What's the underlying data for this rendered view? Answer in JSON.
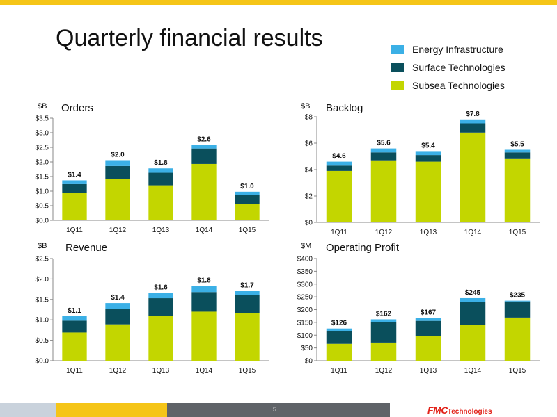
{
  "page": {
    "title": "Quarterly financial results",
    "page_number": "5",
    "logo_text": {
      "brand": "FMC",
      "suffix": "Technologies"
    }
  },
  "legend": {
    "items": [
      {
        "label": "Energy Infrastructure",
        "color": "#3bb0e6"
      },
      {
        "label": "Surface Technologies",
        "color": "#0a4f5c"
      },
      {
        "label": "Subsea Technologies",
        "color": "#c3d600"
      }
    ]
  },
  "chart_data": [
    {
      "type": "bar",
      "stacked": true,
      "title": "Orders",
      "unit": "$B",
      "categories": [
        "1Q11",
        "1Q12",
        "1Q13",
        "1Q14",
        "1Q15"
      ],
      "series": [
        {
          "name": "Subsea Technologies",
          "color": "#c3d600",
          "values": [
            0.94,
            1.42,
            1.2,
            1.93,
            0.56
          ]
        },
        {
          "name": "Surface Technologies",
          "color": "#0a4f5c",
          "values": [
            0.3,
            0.44,
            0.43,
            0.53,
            0.32
          ]
        },
        {
          "name": "Energy Infrastructure",
          "color": "#3bb0e6",
          "values": [
            0.13,
            0.2,
            0.15,
            0.12,
            0.1
          ]
        }
      ],
      "totals": [
        "$1.4",
        "$2.0",
        "$1.8",
        "$2.6",
        "$1.0"
      ],
      "ylim": [
        0,
        3.5
      ],
      "yticks": [
        0,
        0.5,
        1.0,
        1.5,
        2.0,
        2.5,
        3.0,
        3.5
      ],
      "ytick_labels": [
        "$0.0",
        "$0.5",
        "$1.0",
        "$1.5",
        "$2.0",
        "$2.5",
        "$3.0",
        "$3.5"
      ],
      "grid": false
    },
    {
      "type": "bar",
      "stacked": true,
      "title": "Backlog",
      "unit": "$B",
      "categories": [
        "1Q11",
        "1Q12",
        "1Q13",
        "1Q14",
        "1Q15"
      ],
      "series": [
        {
          "name": "Subsea Technologies",
          "color": "#c3d600",
          "values": [
            3.9,
            4.7,
            4.6,
            6.8,
            4.8
          ]
        },
        {
          "name": "Surface Technologies",
          "color": "#0a4f5c",
          "values": [
            0.4,
            0.6,
            0.5,
            0.7,
            0.5
          ]
        },
        {
          "name": "Energy Infrastructure",
          "color": "#3bb0e6",
          "values": [
            0.3,
            0.3,
            0.3,
            0.3,
            0.2
          ]
        }
      ],
      "totals": [
        "$4.6",
        "$5.6",
        "$5.4",
        "$7.8",
        "$5.5"
      ],
      "ylim": [
        0,
        8
      ],
      "yticks": [
        0,
        2,
        4,
        6,
        8
      ],
      "ytick_labels": [
        "$0",
        "$2",
        "$4",
        "$6",
        "$8"
      ],
      "grid": false
    },
    {
      "type": "bar",
      "stacked": true,
      "title": "Revenue",
      "unit": "$B",
      "categories": [
        "1Q11",
        "1Q12",
        "1Q13",
        "1Q14",
        "1Q15"
      ],
      "series": [
        {
          "name": "Subsea Technologies",
          "color": "#c3d600",
          "values": [
            0.69,
            0.89,
            1.09,
            1.2,
            1.16
          ]
        },
        {
          "name": "Surface Technologies",
          "color": "#0a4f5c",
          "values": [
            0.29,
            0.38,
            0.44,
            0.48,
            0.45
          ]
        },
        {
          "name": "Energy Infrastructure",
          "color": "#3bb0e6",
          "values": [
            0.11,
            0.14,
            0.13,
            0.15,
            0.1
          ]
        }
      ],
      "totals": [
        "$1.1",
        "$1.4",
        "$1.6",
        "$1.8",
        "$1.7"
      ],
      "ylim": [
        0,
        2.5
      ],
      "yticks": [
        0,
        0.5,
        1.0,
        1.5,
        2.0,
        2.5
      ],
      "ytick_labels": [
        "$0.0",
        "$0.5",
        "$1.0",
        "$1.5",
        "$2.0",
        "$2.5"
      ],
      "grid": false
    },
    {
      "type": "bar",
      "stacked": true,
      "title": "Operating Profit",
      "unit": "$M",
      "categories": [
        "1Q11",
        "1Q12",
        "1Q13",
        "1Q14",
        "1Q15"
      ],
      "series": [
        {
          "name": "Subsea Technologies",
          "color": "#c3d600",
          "values": [
            66,
            71,
            96,
            141,
            169
          ]
        },
        {
          "name": "Surface Technologies",
          "color": "#0a4f5c",
          "values": [
            51,
            79,
            60,
            88,
            63
          ]
        },
        {
          "name": "Energy Infrastructure",
          "color": "#3bb0e6",
          "values": [
            9,
            12,
            11,
            16,
            3
          ]
        }
      ],
      "totals": [
        "$126",
        "$162",
        "$167",
        "$245",
        "$235"
      ],
      "ylim": [
        0,
        400
      ],
      "yticks": [
        0,
        50,
        100,
        150,
        200,
        250,
        300,
        350,
        400
      ],
      "ytick_labels": [
        "$0",
        "$50",
        "$100",
        "$150",
        "$200",
        "$250",
        "$300",
        "$350",
        "$400"
      ],
      "grid": false
    }
  ]
}
